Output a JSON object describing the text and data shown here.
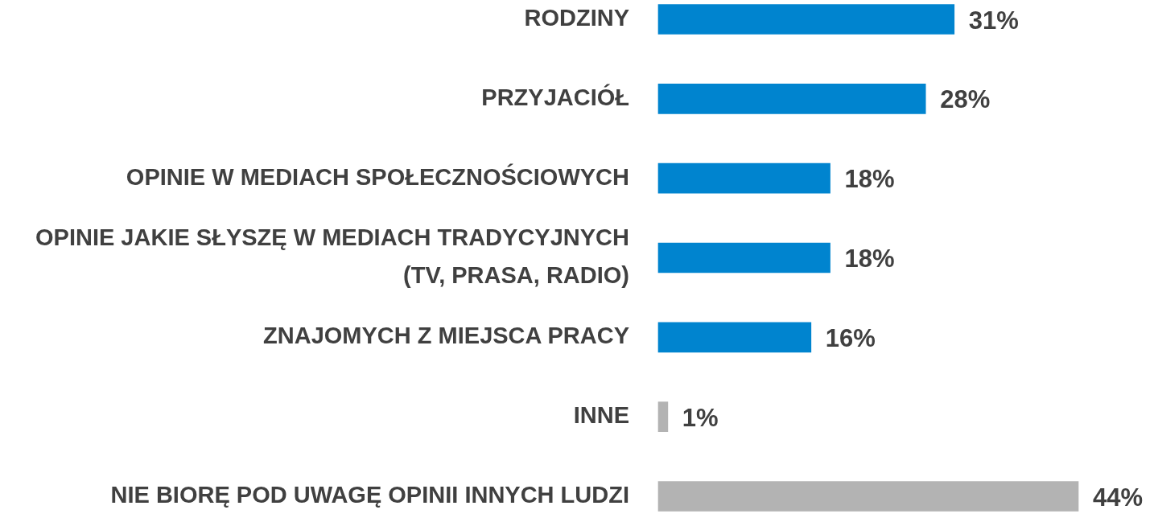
{
  "chart_data": {
    "type": "bar",
    "orientation": "horizontal",
    "categories": [
      "RODZINY",
      "PRZYJACIÓŁ",
      "OPINIE W MEDIACH SPOŁECZNOŚCIOWYCH",
      "OPINIE JAKIE SŁYSZĘ W MEDIACH TRADYCYJNYCH\n(TV, PRASA, RADIO)",
      "ZNAJOMYCH Z MIEJSCA PRACY",
      "INNE",
      "NIE BIORĘ POD UWAGĘ OPINII INNYCH LUDZI"
    ],
    "values": [
      31,
      28,
      18,
      18,
      16,
      1,
      44
    ],
    "colors": [
      "#0084cf",
      "#0084cf",
      "#0084cf",
      "#0084cf",
      "#0084cf",
      "#b3b3b3",
      "#b3b3b3"
    ],
    "value_labels": [
      "31%",
      "28%",
      "18%",
      "18%",
      "16%",
      "1%",
      "44%"
    ],
    "grid": false,
    "legend": false
  }
}
